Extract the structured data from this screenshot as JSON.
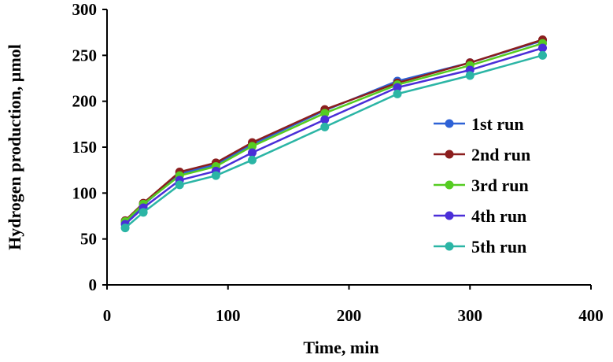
{
  "chart_data": {
    "type": "line",
    "title": "",
    "xlabel": "Time, min",
    "ylabel": "Hydrogen production, µmol",
    "xlim": [
      0,
      400
    ],
    "ylim": [
      0,
      300
    ],
    "xticks": [
      0,
      100,
      200,
      300,
      400
    ],
    "yticks": [
      0,
      50,
      100,
      150,
      200,
      250,
      300
    ],
    "grid": false,
    "legend_position": "right",
    "x": [
      15,
      30,
      60,
      90,
      120,
      180,
      240,
      300,
      360
    ],
    "series": [
      {
        "name": "1st run",
        "color": "#2e62d6",
        "values": [
          68,
          87,
          121,
          131,
          153,
          190,
          222,
          242,
          266
        ]
      },
      {
        "name": "2nd run",
        "color": "#8b1e1e",
        "values": [
          70,
          89,
          123,
          133,
          155,
          191,
          220,
          242,
          267
        ]
      },
      {
        "name": "3rd run",
        "color": "#55cc22",
        "values": [
          69,
          88,
          119,
          129,
          151,
          187,
          218,
          239,
          263
        ]
      },
      {
        "name": "4th run",
        "color": "#4a2ed8",
        "values": [
          66,
          84,
          114,
          124,
          144,
          180,
          215,
          234,
          258
        ]
      },
      {
        "name": "5th run",
        "color": "#2bb5a5",
        "values": [
          62,
          79,
          109,
          119,
          136,
          172,
          208,
          228,
          250
        ]
      }
    ]
  }
}
